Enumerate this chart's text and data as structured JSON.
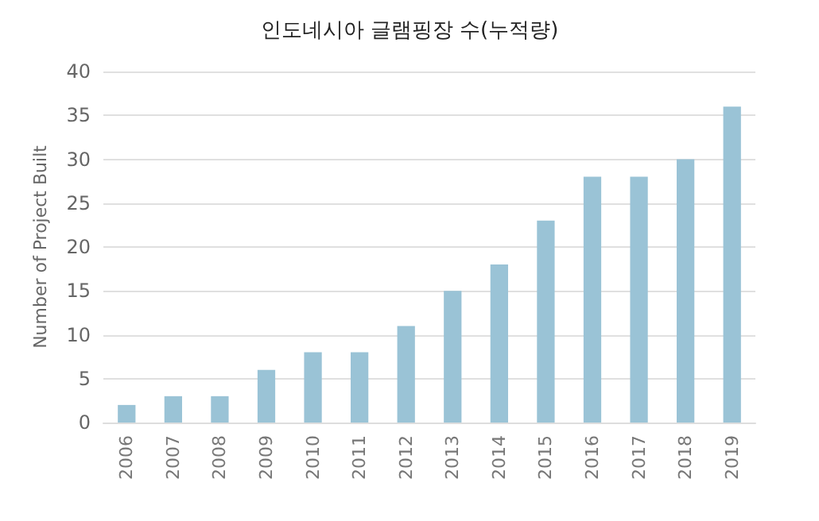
{
  "chart_data": {
    "type": "bar",
    "title": "인도네시아 글램핑장 수(누적량)",
    "ylabel": "Number of Project Built",
    "categories": [
      "2006",
      "2007",
      "2008",
      "2009",
      "2010",
      "2011",
      "2012",
      "2013",
      "2014",
      "2015",
      "2016",
      "2017",
      "2018",
      "2019"
    ],
    "values": [
      2,
      3,
      3,
      6,
      8,
      8,
      11,
      15,
      18,
      23,
      28,
      28,
      30,
      36
    ],
    "color": "#9ac3d6",
    "ylim": [
      0,
      40
    ],
    "yticks": [
      0,
      5,
      10,
      15,
      20,
      25,
      30,
      35,
      40
    ],
    "grid": "y"
  }
}
